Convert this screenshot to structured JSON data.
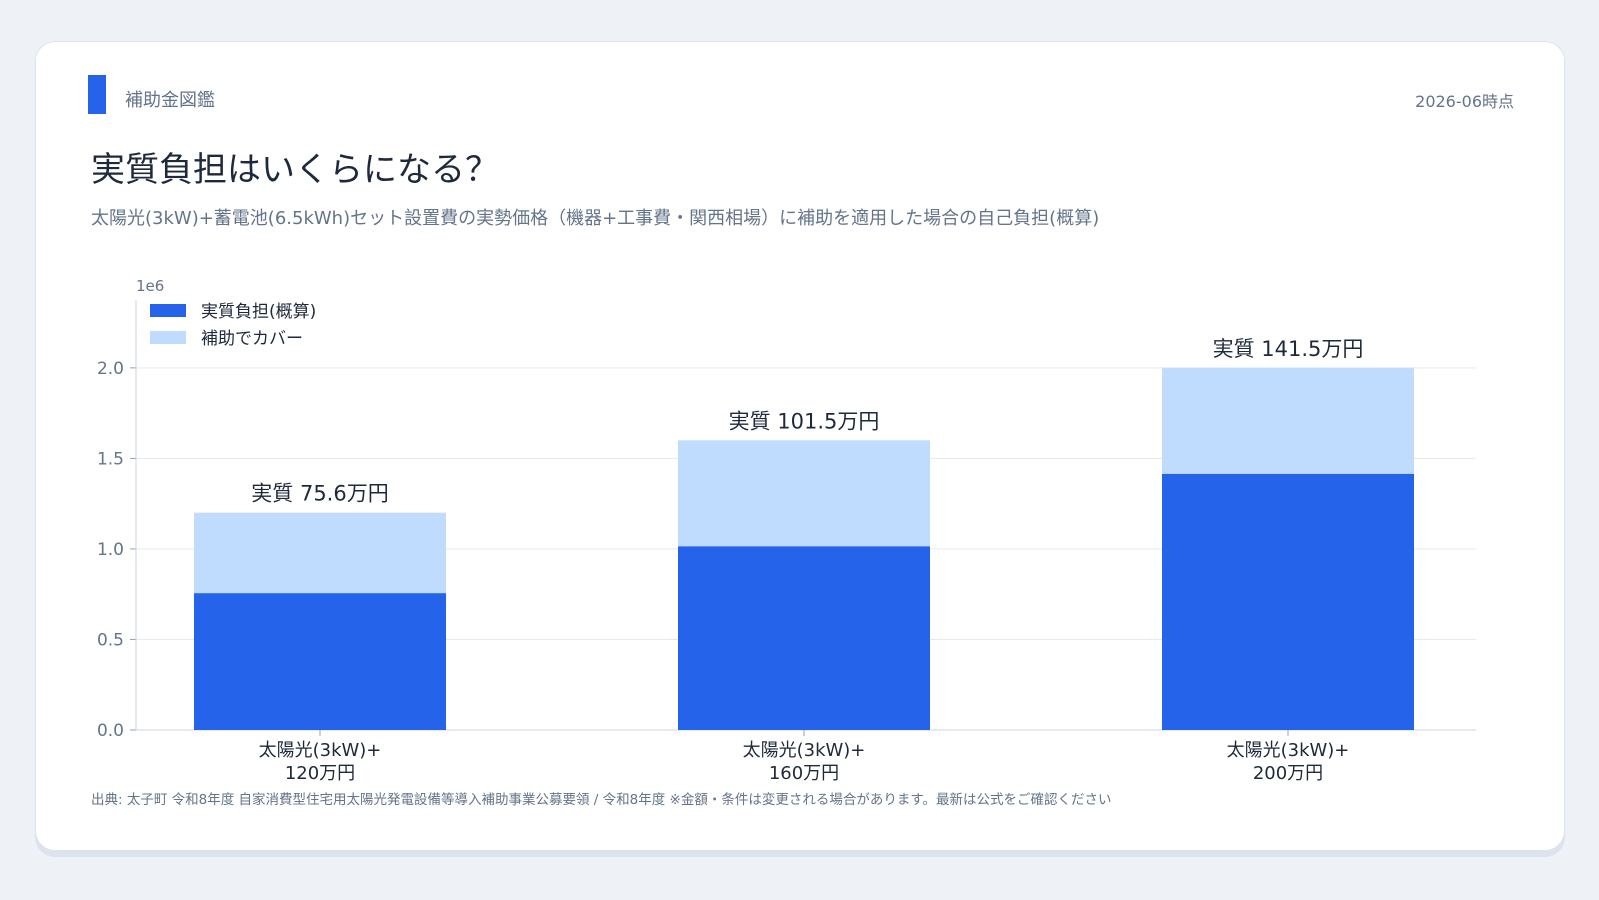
{
  "header": {
    "brand": "補助金図鑑",
    "as_of": "2026-06時点",
    "title": "実質負担はいくらになる？",
    "subtitle": "太陽光(3kW)+蓄電池(6.5kWh)セット設置費の実勢価格（機器+工事費・関西相場）に補助を適用した場合の自己負担(概算)"
  },
  "footer": {
    "source": "出典: 太子町 令和8年度 自家消費型住宅用太陽光発電設備等導入補助事業公募要領 / 令和8年度 ※金額・条件は変更される場合があります。最新は公式をご確認ください"
  },
  "colors": {
    "accent": "#2563eb",
    "net_cost": "#2563eb",
    "subsidy": "#bfdbfe",
    "text": "#1e293b",
    "muted": "#64748b"
  },
  "chart_data": {
    "type": "bar",
    "stacked": true,
    "categories": [
      [
        "太陽光(3kW)+",
        "120万円"
      ],
      [
        "太陽光(3kW)+",
        "160万円"
      ],
      [
        "太陽光(3kW)+",
        "200万円"
      ]
    ],
    "series": [
      {
        "name": "実質負担(概算)",
        "values": [
          756000,
          1015000,
          1415000
        ],
        "color": "#2563eb"
      },
      {
        "name": "補助でカバー",
        "values": [
          444000,
          585000,
          585000
        ],
        "color": "#bfdbfe"
      }
    ],
    "data_labels": [
      "実質 75.6万円",
      "実質 101.5万円",
      "実質 141.5万円"
    ],
    "y_offset_label": "1e6",
    "yticks": [
      {
        "value": 0,
        "label": "0.0"
      },
      {
        "value": 500000,
        "label": "0.5"
      },
      {
        "value": 1000000,
        "label": "1.0"
      },
      {
        "value": 1500000,
        "label": "1.5"
      },
      {
        "value": 2000000,
        "label": "2.0"
      }
    ],
    "ylim": [
      0,
      2430000
    ],
    "grid": true,
    "legend_position": "top-left",
    "title": "",
    "xlabel": "",
    "ylabel": ""
  }
}
